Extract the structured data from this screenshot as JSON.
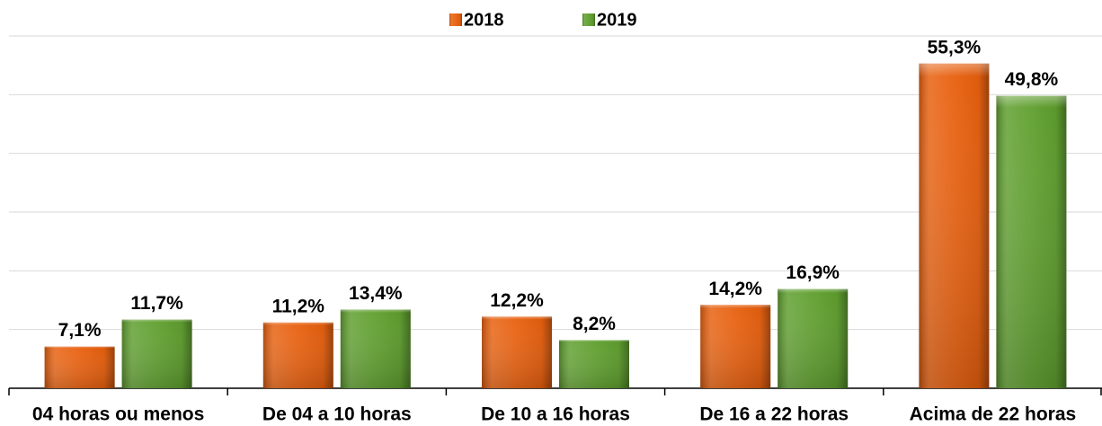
{
  "chart_data": {
    "type": "bar",
    "categories": [
      "04 horas ou menos",
      "De 04 a 10 horas",
      "De 10 a 16 horas",
      "De 16 a 22 horas",
      "Acima de 22 horas"
    ],
    "series": [
      {
        "name": "2018",
        "color": "#e8600e",
        "values": [
          7.1,
          11.2,
          12.2,
          14.2,
          55.3
        ],
        "value_labels": [
          "7,1%",
          "11,2%",
          "12,2%",
          "14,2%",
          "55,3%"
        ]
      },
      {
        "name": "2019",
        "color": "#5f9f2e",
        "values": [
          11.7,
          13.4,
          8.2,
          16.9,
          49.8
        ],
        "value_labels": [
          "11,7%",
          "13,4%",
          "8,2%",
          "16,9%",
          "49,8%"
        ]
      }
    ],
    "ylim": [
      0,
      60
    ],
    "yticks": [
      0,
      10,
      20,
      30,
      40,
      50,
      60
    ],
    "grid": true,
    "legend": "top"
  }
}
